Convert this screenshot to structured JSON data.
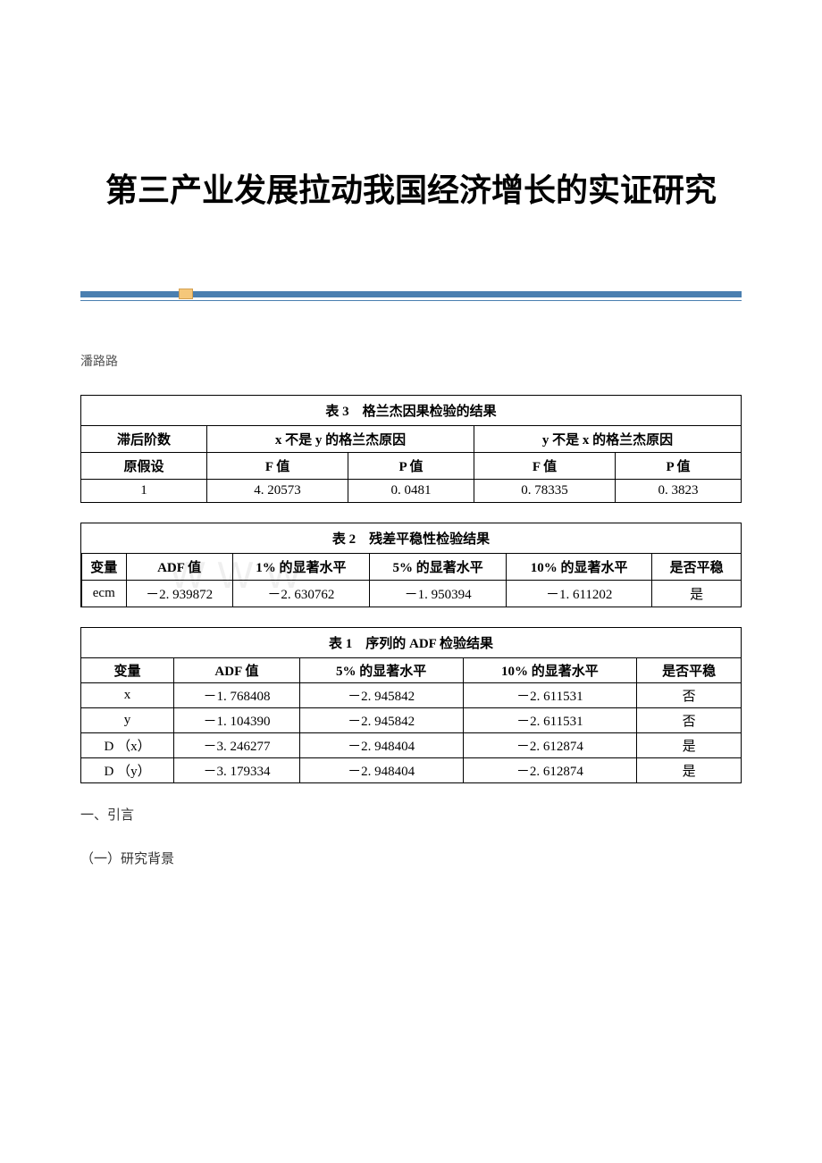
{
  "title": "第三产业发展拉动我国经济增长的实证研究",
  "author": "潘路路",
  "watermark_text": "WWW",
  "table3": {
    "caption": "表 3　格兰杰因果检验的结果",
    "headers": {
      "lag": "滞后阶数",
      "group1": "x 不是 y 的格兰杰原因",
      "group2": "y 不是 x 的格兰杰原因",
      "hypothesis": "原假设",
      "f_value": "F 值",
      "p_value": "P 值"
    },
    "rows": [
      {
        "lag": "1",
        "f1": "4. 20573",
        "p1": "0. 0481",
        "f2": "0. 78335",
        "p2": "0. 3823"
      }
    ]
  },
  "table2": {
    "caption": "表 2　残差平稳性检验结果",
    "headers": {
      "variable": "变量",
      "adf": "ADF 值",
      "sig1": "1% 的显著水平",
      "sig5": "5% 的显著水平",
      "sig10": "10% 的显著水平",
      "stable": "是否平稳"
    },
    "rows": [
      {
        "variable": "ecm",
        "adf": "－2. 939872",
        "sig1": "－2. 630762",
        "sig5": "－1. 950394",
        "sig10": "－1. 611202",
        "stable": "是"
      }
    ]
  },
  "table1": {
    "caption": "表 1　序列的 ADF 检验结果",
    "headers": {
      "variable": "变量",
      "adf": "ADF 值",
      "sig5": "5% 的显著水平",
      "sig10": "10% 的显著水平",
      "stable": "是否平稳"
    },
    "rows": [
      {
        "variable": "x",
        "adf": "－1. 768408",
        "sig5": "－2. 945842",
        "sig10": "－2. 611531",
        "stable": "否"
      },
      {
        "variable": "y",
        "adf": "－1. 104390",
        "sig5": "－2. 945842",
        "sig10": "－2. 611531",
        "stable": "否"
      },
      {
        "variable": "D （x）",
        "adf": "－3. 246277",
        "sig5": "－2. 948404",
        "sig10": "－2. 612874",
        "stable": "是"
      },
      {
        "variable": "D （y）",
        "adf": "－3. 179334",
        "sig5": "－2. 948404",
        "sig10": "－2. 612874",
        "stable": "是"
      }
    ]
  },
  "section1": "一、引言",
  "subsection1": "（一）研究背景"
}
